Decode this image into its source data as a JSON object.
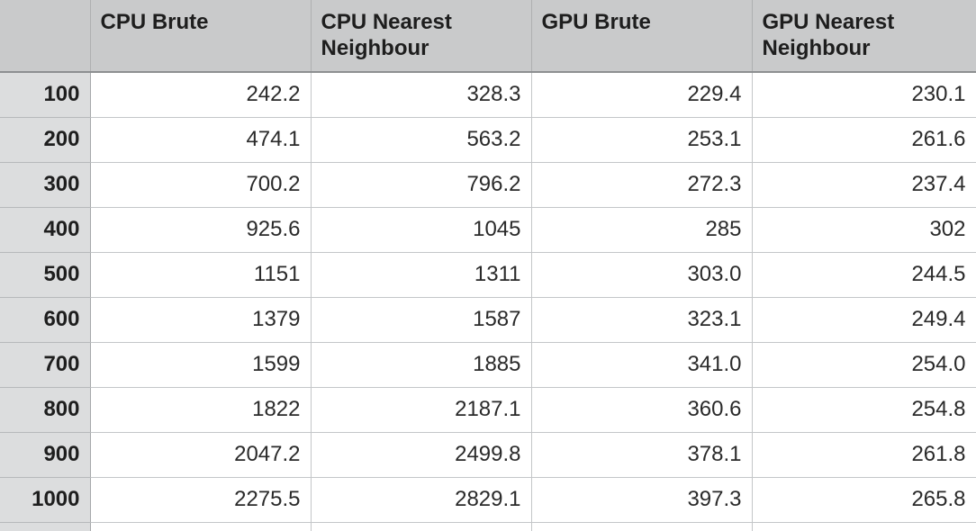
{
  "table": {
    "columns": [
      "CPU Brute",
      "CPU Nearest Neighbour",
      "GPU Brute",
      "GPU Nearest Neighbour"
    ],
    "rows": [
      {
        "label": "100",
        "values": [
          "242.2",
          "328.3",
          "229.4",
          "230.1"
        ]
      },
      {
        "label": "200",
        "values": [
          "474.1",
          "563.2",
          "253.1",
          "261.6"
        ]
      },
      {
        "label": "300",
        "values": [
          "700.2",
          "796.2",
          "272.3",
          "237.4"
        ]
      },
      {
        "label": "400",
        "values": [
          "925.6",
          "1045",
          "285",
          "302"
        ]
      },
      {
        "label": "500",
        "values": [
          "1151",
          "1311",
          "303.0",
          "244.5"
        ]
      },
      {
        "label": "600",
        "values": [
          "1379",
          "1587",
          "323.1",
          "249.4"
        ]
      },
      {
        "label": "700",
        "values": [
          "1599",
          "1885",
          "341.0",
          "254.0"
        ]
      },
      {
        "label": "800",
        "values": [
          "1822",
          "2187.1",
          "360.6",
          "254.8"
        ]
      },
      {
        "label": "900",
        "values": [
          "2047.2",
          "2499.8",
          "378.1",
          "261.8"
        ]
      },
      {
        "label": "1000",
        "values": [
          "2275.5",
          "2829.1",
          "397.3",
          "265.8"
        ]
      }
    ]
  }
}
